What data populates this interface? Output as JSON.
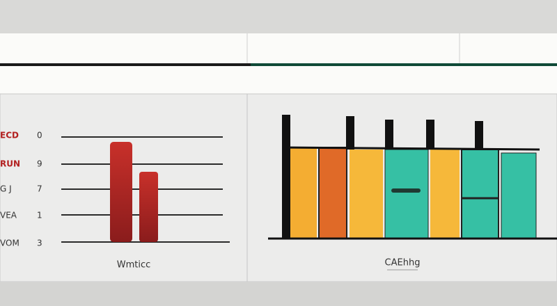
{
  "left_panel": {
    "rows": [
      {
        "label": "ECD",
        "number": "0"
      },
      {
        "label": "RUN",
        "number": "9"
      },
      {
        "label": "G J",
        "number": "7"
      },
      {
        "label": "VEA",
        "number": "1"
      },
      {
        "label": "VOM",
        "number": "3"
      }
    ],
    "caption": "Wmticc"
  },
  "right_panel": {
    "caption": "CAEhhg"
  }
}
